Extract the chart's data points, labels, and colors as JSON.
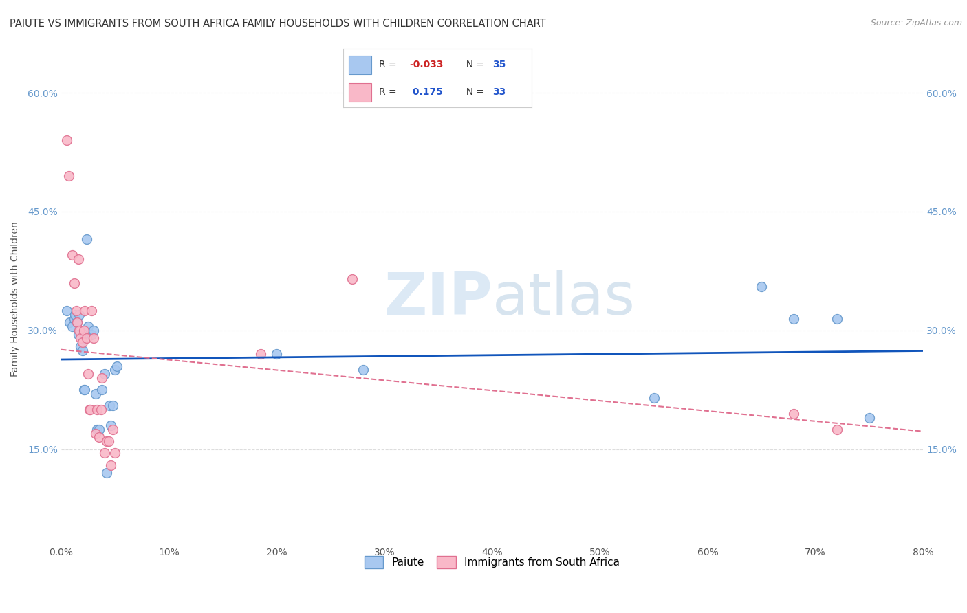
{
  "title": "PAIUTE VS IMMIGRANTS FROM SOUTH AFRICA FAMILY HOUSEHOLDS WITH CHILDREN CORRELATION CHART",
  "source": "Source: ZipAtlas.com",
  "ylabel": "Family Households with Children",
  "xlim": [
    0.0,
    0.8
  ],
  "ylim": [
    0.03,
    0.65
  ],
  "yticks": [
    0.15,
    0.3,
    0.45,
    0.6
  ],
  "xticks": [
    0.0,
    0.1,
    0.2,
    0.3,
    0.4,
    0.5,
    0.6,
    0.7,
    0.8
  ],
  "watermark": "ZIPatlas",
  "paiute_color": "#A8C8F0",
  "paiute_edge": "#6699CC",
  "sa_color": "#F9B8C8",
  "sa_edge": "#E07090",
  "trend_paiute_color": "#1155BB",
  "trend_sa_color": "#E07090",
  "R_paiute": -0.033,
  "N_paiute": 35,
  "R_sa": 0.175,
  "N_sa": 33,
  "paiute_x": [
    0.005,
    0.008,
    0.01,
    0.012,
    0.013,
    0.015,
    0.016,
    0.017,
    0.018,
    0.02,
    0.021,
    0.022,
    0.024,
    0.025,
    0.026,
    0.028,
    0.03,
    0.032,
    0.033,
    0.035,
    0.038,
    0.04,
    0.042,
    0.045,
    0.046,
    0.048,
    0.05,
    0.052,
    0.2,
    0.28,
    0.55,
    0.65,
    0.68,
    0.72,
    0.75
  ],
  "paiute_y": [
    0.325,
    0.31,
    0.305,
    0.315,
    0.32,
    0.31,
    0.295,
    0.32,
    0.28,
    0.275,
    0.225,
    0.225,
    0.415,
    0.305,
    0.295,
    0.295,
    0.3,
    0.22,
    0.175,
    0.175,
    0.225,
    0.245,
    0.12,
    0.205,
    0.18,
    0.205,
    0.25,
    0.255,
    0.27,
    0.25,
    0.215,
    0.355,
    0.315,
    0.315,
    0.19
  ],
  "sa_x": [
    0.005,
    0.007,
    0.01,
    0.012,
    0.014,
    0.015,
    0.016,
    0.017,
    0.018,
    0.02,
    0.021,
    0.022,
    0.024,
    0.025,
    0.026,
    0.027,
    0.028,
    0.03,
    0.032,
    0.033,
    0.035,
    0.037,
    0.038,
    0.04,
    0.042,
    0.044,
    0.046,
    0.048,
    0.05,
    0.185,
    0.27,
    0.68,
    0.72
  ],
  "sa_y": [
    0.54,
    0.495,
    0.395,
    0.36,
    0.325,
    0.31,
    0.39,
    0.3,
    0.29,
    0.285,
    0.3,
    0.325,
    0.29,
    0.245,
    0.2,
    0.2,
    0.325,
    0.29,
    0.17,
    0.2,
    0.165,
    0.2,
    0.24,
    0.145,
    0.16,
    0.16,
    0.13,
    0.175,
    0.145,
    0.27,
    0.365,
    0.195,
    0.175
  ],
  "background_color": "#FFFFFF",
  "grid_color": "#DDDDDD"
}
